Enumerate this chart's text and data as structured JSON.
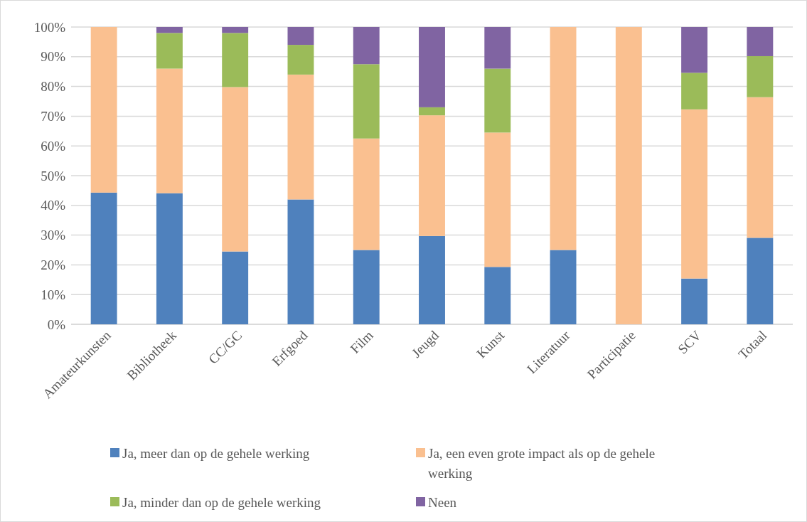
{
  "chart_data": {
    "type": "bar",
    "stacked": true,
    "categories": [
      "Amateurkunsten",
      "Bibliotheek",
      "CC/GC",
      "Erfgoed",
      "Film",
      "Jeugd",
      "Kunst",
      "Literatuur",
      "Participatie",
      "SCV",
      "Totaal"
    ],
    "series": [
      {
        "name": "Ja, meer dan op de gehele werking",
        "color": "#4f81bd",
        "values": [
          44.3,
          44.1,
          24.5,
          42,
          25,
          29.7,
          19.3,
          25,
          0,
          15.4,
          29.1
        ]
      },
      {
        "name": "Ja, een even grote impact als op de gehele werking",
        "color": "#fac090",
        "values": [
          55.7,
          41.9,
          55.3,
          42,
          37.5,
          40.6,
          45.2,
          75,
          100,
          56.9,
          47.3
        ]
      },
      {
        "name": "Ja, minder dan op de gehele werking",
        "color": "#9bbb59",
        "values": [
          0,
          12,
          18.2,
          10,
          25,
          2.7,
          21.5,
          0,
          0,
          12.3,
          13.8
        ]
      },
      {
        "name": "Neen",
        "color": "#8064a2",
        "values": [
          0,
          2,
          2,
          6,
          12.5,
          27,
          14,
          0,
          0,
          15.4,
          9.8
        ]
      }
    ],
    "ylim": [
      0,
      100
    ],
    "yticks": [
      {
        "value": 0,
        "label": "0%"
      },
      {
        "value": 10,
        "label": "10%"
      },
      {
        "value": 20,
        "label": "20%"
      },
      {
        "value": 30,
        "label": "30%"
      },
      {
        "value": 40,
        "label": "40%"
      },
      {
        "value": 50,
        "label": "50%"
      },
      {
        "value": 60,
        "label": "60%"
      },
      {
        "value": 70,
        "label": "70%"
      },
      {
        "value": 80,
        "label": "80%"
      },
      {
        "value": 90,
        "label": "90%"
      },
      {
        "value": 100,
        "label": "100%"
      }
    ],
    "grid": "y",
    "legend": "bottom"
  }
}
